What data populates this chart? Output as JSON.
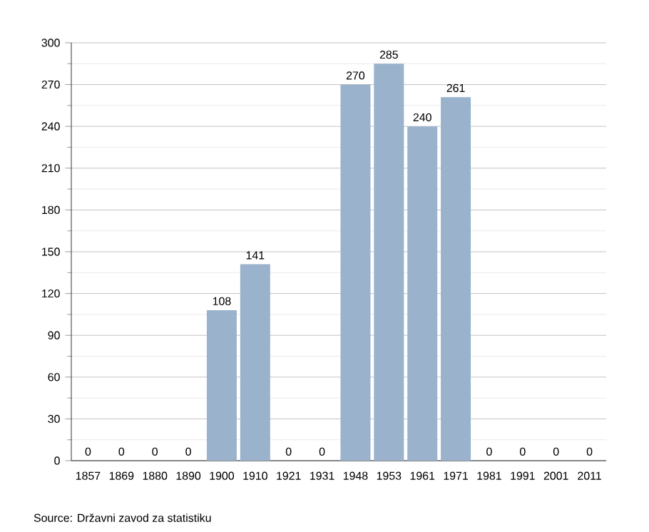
{
  "chart_data": {
    "type": "bar",
    "categories": [
      "1857",
      "1869",
      "1880",
      "1890",
      "1900",
      "1910",
      "1921",
      "1931",
      "1948",
      "1953",
      "1961",
      "1971",
      "1981",
      "1991",
      "2001",
      "2011"
    ],
    "values": [
      0,
      0,
      0,
      0,
      108,
      141,
      0,
      0,
      270,
      285,
      240,
      261,
      0,
      0,
      0,
      0
    ],
    "color": "#9ab2cc",
    "ylim": [
      0,
      300
    ],
    "yticks": [
      0,
      30,
      60,
      90,
      120,
      150,
      180,
      210,
      240,
      270,
      300
    ],
    "grid": "y",
    "data_labels": true,
    "annotations": [
      "Source: Državni zavod za statistiku"
    ]
  }
}
